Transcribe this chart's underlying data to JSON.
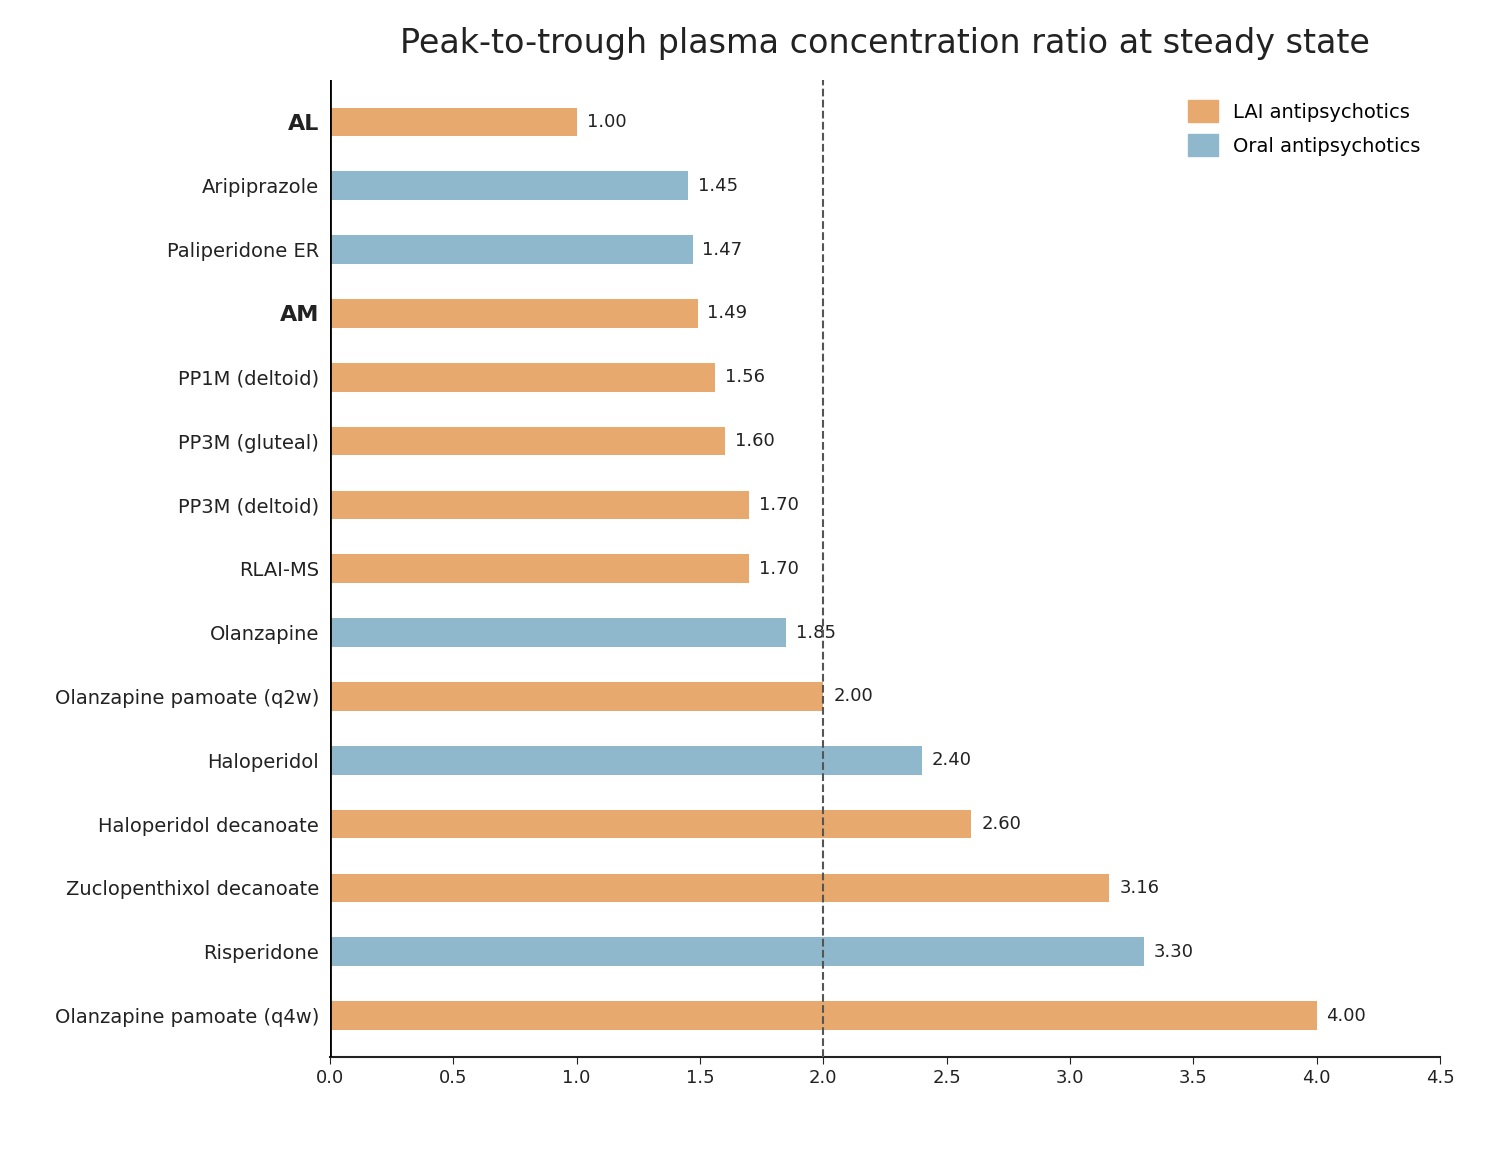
{
  "title": "Peak-to-trough plasma concentration ratio at steady state",
  "categories": [
    "AL",
    "Aripiprazole",
    "Paliperidone ER",
    "AM",
    "PP1M (deltoid)",
    "PP3M (gluteal)",
    "PP3M (deltoid)",
    "RLAI-MS",
    "Olanzapine",
    "Olanzapine pamoate (q2w)",
    "Haloperidol",
    "Haloperidol decanoate",
    "Zuclopenthixol decanoate",
    "Risperidone",
    "Olanzapine pamoate (q4w)"
  ],
  "values": [
    1.0,
    1.45,
    1.47,
    1.49,
    1.56,
    1.6,
    1.7,
    1.7,
    1.85,
    2.0,
    2.4,
    2.6,
    3.16,
    3.3,
    4.0
  ],
  "colors": [
    "#E8A96E",
    "#8FB8CC",
    "#8FB8CC",
    "#E8A96E",
    "#E8A96E",
    "#E8A96E",
    "#E8A96E",
    "#E8A96E",
    "#8FB8CC",
    "#E8A96E",
    "#8FB8CC",
    "#E8A96E",
    "#E8A96E",
    "#8FB8CC",
    "#E8A96E"
  ],
  "bold_labels": [
    "AL",
    "AM"
  ],
  "xlim": [
    0,
    4.5
  ],
  "xticks": [
    0.0,
    0.5,
    1.0,
    1.5,
    2.0,
    2.5,
    3.0,
    3.5,
    4.0,
    4.5
  ],
  "dashed_line_x": 2.0,
  "legend_lai_color": "#E8A96E",
  "legend_oral_color": "#8FB8CC",
  "legend_lai_label": "LAI antipsychotics",
  "legend_oral_label": "Oral antipsychotics",
  "background_color": "#FFFFFF",
  "title_fontsize": 24,
  "label_fontsize": 14,
  "bold_label_fontsize": 16,
  "value_fontsize": 13,
  "tick_fontsize": 13,
  "bar_height": 0.45
}
